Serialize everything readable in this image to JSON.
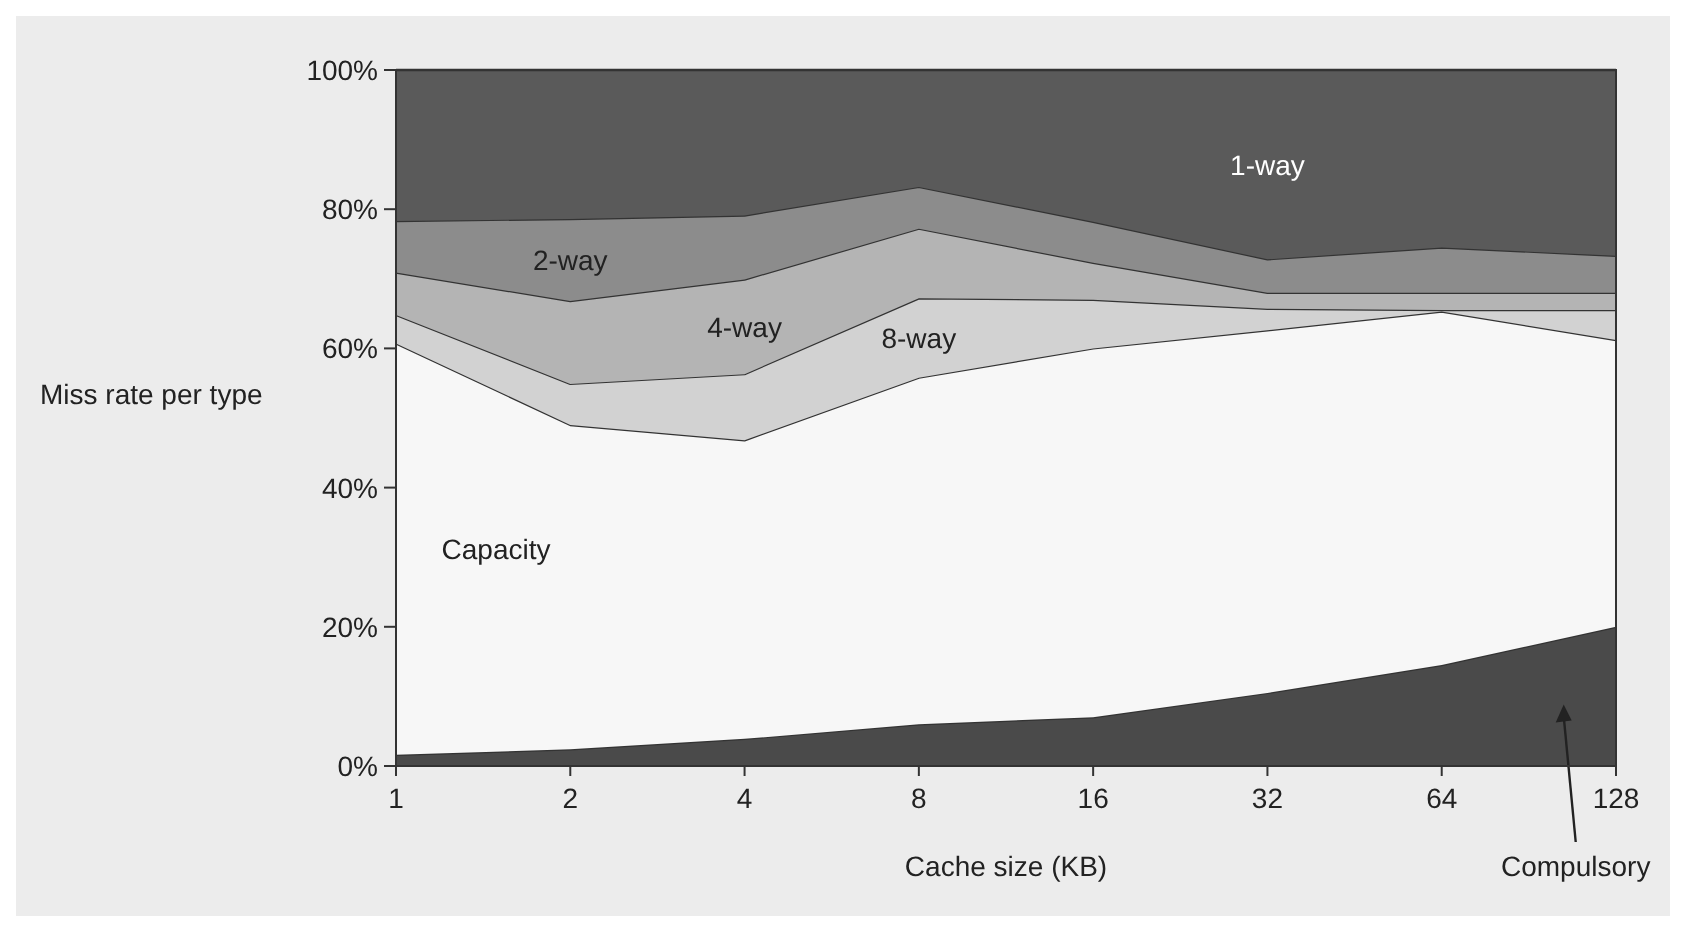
{
  "chart_data": {
    "type": "area",
    "stacked": true,
    "xlabel": "Cache size (KB)",
    "ylabel": "Miss rate per type",
    "categories": [
      "1",
      "2",
      "4",
      "8",
      "16",
      "32",
      "64",
      "128"
    ],
    "ylim": [
      0,
      100
    ],
    "yticks": [
      {
        "value": 0,
        "label": "0%"
      },
      {
        "value": 20,
        "label": "20%"
      },
      {
        "value": 40,
        "label": "40%"
      },
      {
        "value": 60,
        "label": "60%"
      },
      {
        "value": 80,
        "label": "80%"
      },
      {
        "value": 100,
        "label": "100%"
      }
    ],
    "series": [
      {
        "name": "Compulsory",
        "color": "#4a4a4a",
        "values": [
          1.6,
          2.4,
          3.9,
          6.0,
          7.0,
          10.5,
          14.5,
          20.0
        ]
      },
      {
        "name": "Capacity",
        "color": "#f7f7f7",
        "values": [
          59.1,
          46.6,
          42.9,
          49.8,
          53.0,
          52.1,
          50.8,
          41.2
        ]
      },
      {
        "name": "8-way",
        "color": "#d2d2d2",
        "values": [
          4.1,
          5.9,
          9.5,
          11.4,
          7.0,
          3.1,
          0.2,
          4.3
        ]
      },
      {
        "name": "4-way",
        "color": "#b4b4b4",
        "values": [
          6.1,
          11.9,
          13.6,
          10.0,
          5.3,
          2.3,
          2.5,
          2.5
        ]
      },
      {
        "name": "2-way",
        "color": "#8c8c8c",
        "values": [
          7.4,
          11.8,
          9.2,
          6.0,
          5.9,
          4.8,
          6.5,
          5.3
        ]
      },
      {
        "name": "1-way",
        "color": "#5a5a5a",
        "values": [
          21.7,
          21.4,
          20.9,
          16.8,
          21.8,
          27.2,
          25.5,
          26.7
        ]
      }
    ]
  }
}
